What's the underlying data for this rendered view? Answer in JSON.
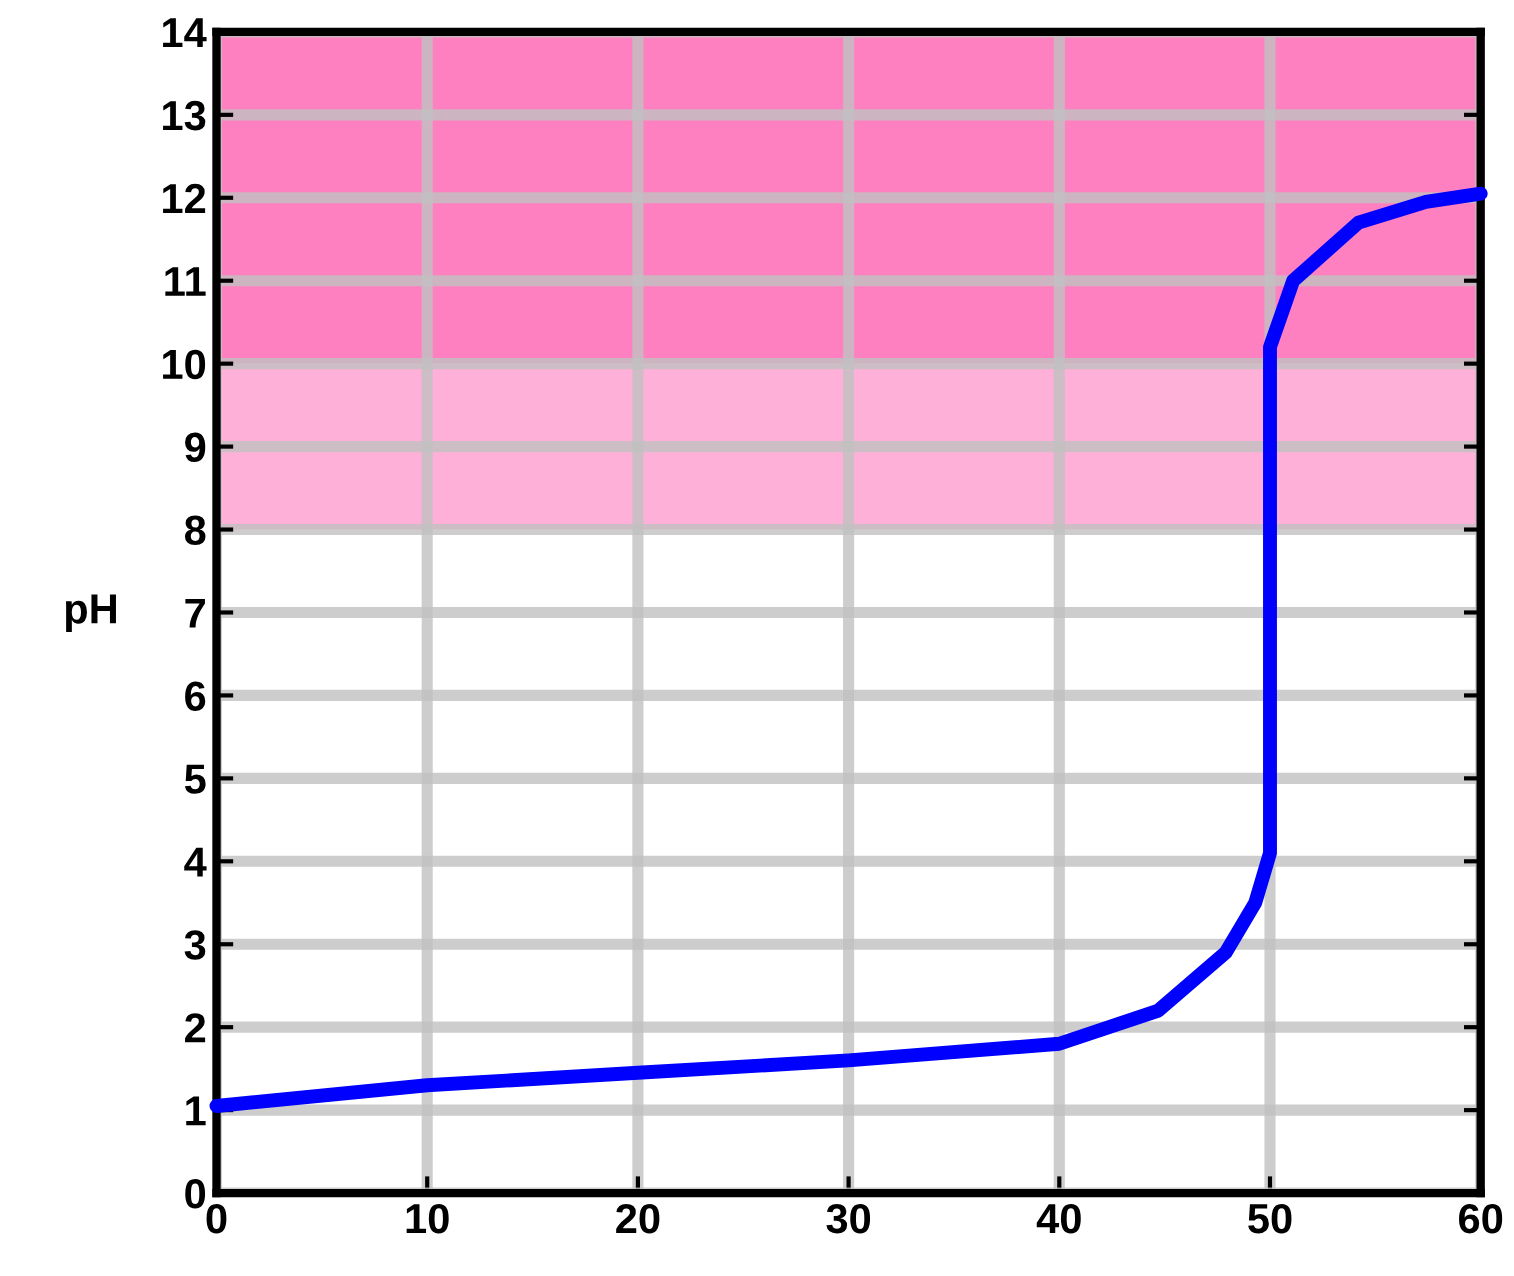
{
  "chart_data": {
    "type": "line",
    "ylabel": "pH",
    "series": [
      {
        "color": "#0000ff",
        "x": [
          0,
          10,
          20,
          30,
          40,
          44.7,
          47.9,
          49.3,
          50,
          50,
          51.1,
          54.2,
          57.4,
          60
        ],
        "values": [
          1.05,
          1.3,
          1.45,
          1.6,
          1.8,
          2.2,
          2.9,
          3.5,
          4.1,
          10.2,
          11.0,
          11.7,
          11.95,
          12.05
        ]
      }
    ],
    "xlim": [
      0,
      60
    ],
    "xticks": [
      0,
      10,
      20,
      30,
      40,
      50,
      60
    ],
    "ylim": [
      0,
      14
    ],
    "yticks": [
      0,
      1,
      2,
      3,
      4,
      5,
      6,
      7,
      8,
      9,
      10,
      11,
      12,
      13,
      14
    ],
    "bands": [
      {
        "axis": "y",
        "from": 10,
        "to": 14,
        "color": "#ff80c0"
      },
      {
        "axis": "y",
        "from": 8,
        "to": 10,
        "color": "#ffb0d8"
      }
    ],
    "grid": true
  }
}
